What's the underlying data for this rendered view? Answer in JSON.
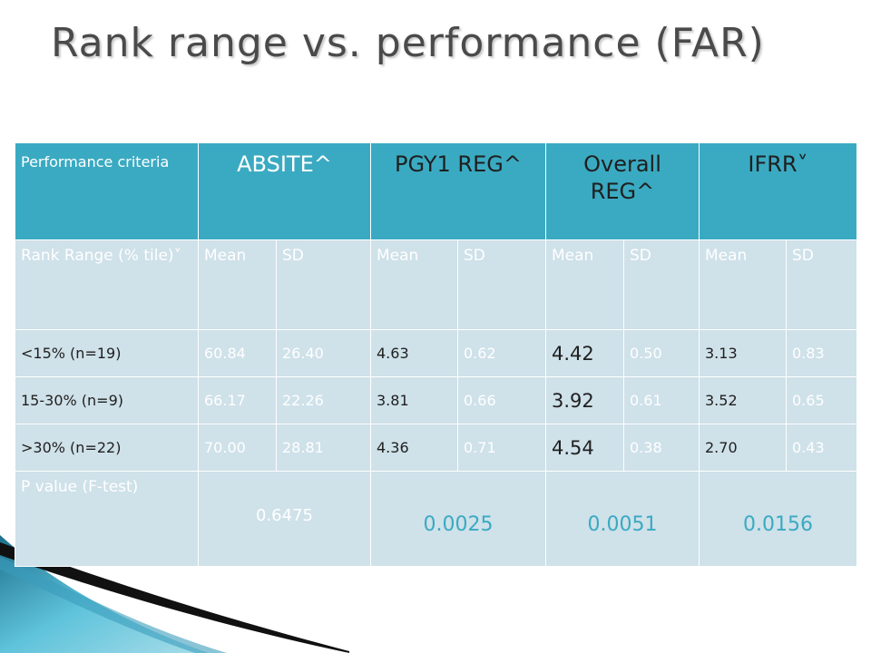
{
  "title": "Rank range vs. performance (FAR)",
  "colors": {
    "header": "#3aaac2",
    "cell": "#cfe1e9",
    "text": "#1f1f1f",
    "accent": "#3aaac2"
  },
  "table": {
    "header": {
      "criteria": "Performance criteria",
      "absite": "ABSITE^",
      "pgy1": "PGY1 REG^",
      "overall": "Overall REG^",
      "ifrr": "IFRR˅"
    },
    "subheader": {
      "rank_range": "Rank Range (% tile)˅",
      "mean": "Mean",
      "sd": "SD"
    },
    "rows": [
      {
        "label": "<15% (n=19)",
        "absite_mean": "60.84",
        "absite_sd": "26.40",
        "pgy1_mean": "4.63",
        "pgy1_sd": "0.62",
        "overall_mean": "4.42",
        "overall_sd": "0.50",
        "ifrr_mean": "3.13",
        "ifrr_sd": "0.83"
      },
      {
        "label": "15-30% (n=9)",
        "absite_mean": "66.17",
        "absite_sd": "22.26",
        "pgy1_mean": "3.81",
        "pgy1_sd": "0.66",
        "overall_mean": "3.92",
        "overall_sd": "0.61",
        "ifrr_mean": "3.52",
        "ifrr_sd": "0.65"
      },
      {
        "label": ">30% (n=22)",
        "absite_mean": "70.00",
        "absite_sd": "28.81",
        "pgy1_mean": "4.36",
        "pgy1_sd": "0.71",
        "overall_mean": "4.54",
        "overall_sd": "0.38",
        "ifrr_mean": "2.70",
        "ifrr_sd": "0.43"
      }
    ],
    "pvalue": {
      "label": "P value (F-test)",
      "absite": "0.6475",
      "pgy1": "0.0025",
      "overall": "0.0051",
      "ifrr": "0.0156"
    }
  }
}
